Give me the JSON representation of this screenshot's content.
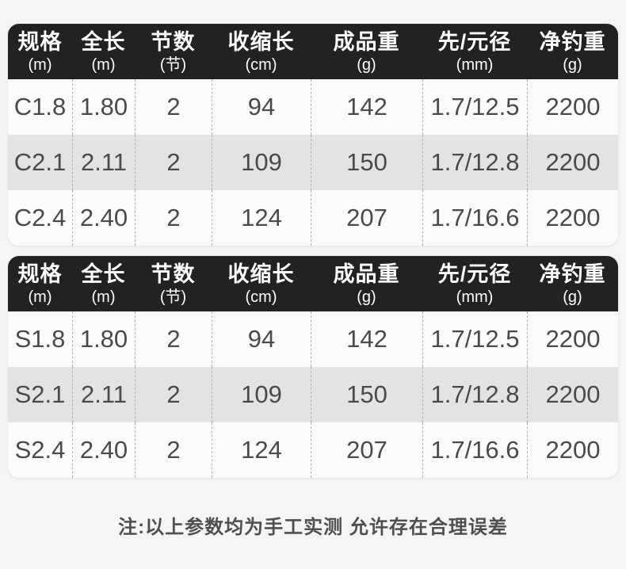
{
  "page": {
    "note": "注:以上参数均为手工实测 允许存在合理误差"
  },
  "colors": {
    "page_background": "#f5f5f5",
    "header_background": "#222222",
    "header_text": "#ffffff",
    "row_light": "#fbfbfb",
    "row_dark": "#e3e3e3",
    "cell_text": "#4a4a4a",
    "divider_dashed": "#b0b0b0",
    "note_text": "#4f4f4f"
  },
  "columns": [
    {
      "label": "规格",
      "unit": "(m)"
    },
    {
      "label": "全长",
      "unit": "(m)"
    },
    {
      "label": "节数",
      "unit": "(节)"
    },
    {
      "label": "收缩长",
      "unit": "(cm)"
    },
    {
      "label": "成品重",
      "unit": "(g)"
    },
    {
      "label": "先/元径",
      "unit": "(mm)"
    },
    {
      "label": "净钓重",
      "unit": "(g)"
    }
  ],
  "chart_data": [
    {
      "type": "table",
      "title": "C-series specifications",
      "columns": [
        "规格(m)",
        "全长(m)",
        "节数(节)",
        "收缩长(cm)",
        "成品重(g)",
        "先/元径(mm)",
        "净钓重(g)"
      ],
      "rows": [
        [
          "C1.8",
          "1.80",
          "2",
          "94",
          "142",
          "1.7/12.5",
          "2200"
        ],
        [
          "C2.1",
          "2.11",
          "2",
          "109",
          "150",
          "1.7/12.8",
          "2200"
        ],
        [
          "C2.4",
          "2.40",
          "2",
          "124",
          "207",
          "1.7/16.6",
          "2200"
        ]
      ]
    },
    {
      "type": "table",
      "title": "S-series specifications",
      "columns": [
        "规格(m)",
        "全长(m)",
        "节数(节)",
        "收缩长(cm)",
        "成品重(g)",
        "先/元径(mm)",
        "净钓重(g)"
      ],
      "rows": [
        [
          "S1.8",
          "1.80",
          "2",
          "94",
          "142",
          "1.7/12.5",
          "2200"
        ],
        [
          "S2.1",
          "2.11",
          "2",
          "109",
          "150",
          "1.7/12.8",
          "2200"
        ],
        [
          "S2.4",
          "2.40",
          "2",
          "124",
          "207",
          "1.7/16.6",
          "2200"
        ]
      ]
    }
  ]
}
